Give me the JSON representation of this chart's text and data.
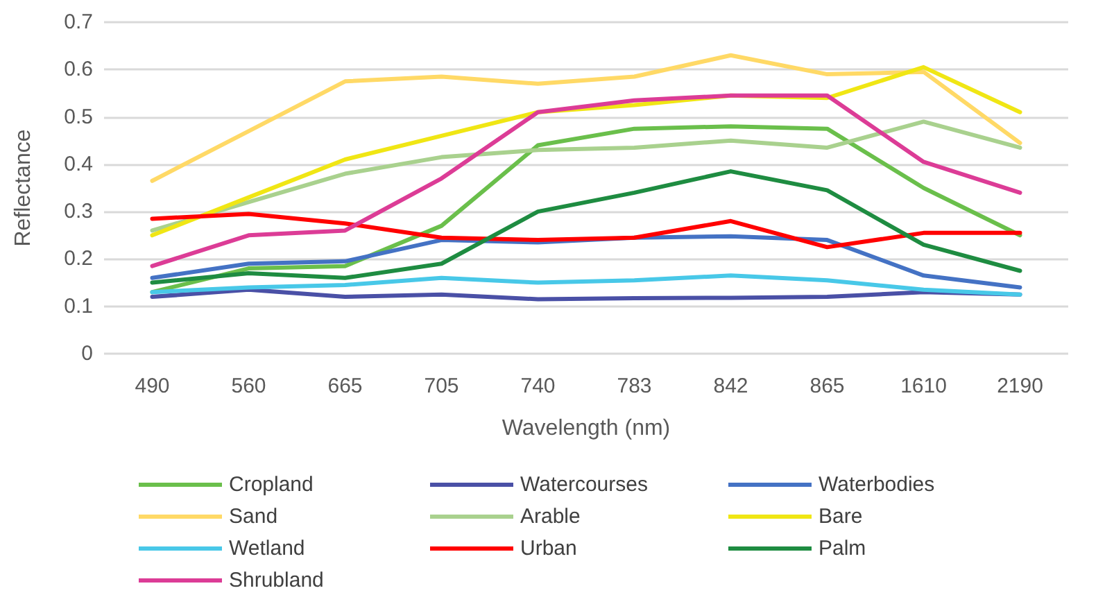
{
  "chart_data": {
    "type": "line",
    "xlabel": "Wavelength (nm)",
    "ylabel": "Reflectance",
    "categories": [
      "490",
      "560",
      "665",
      "705",
      "740",
      "783",
      "842",
      "865",
      "1610",
      "2190"
    ],
    "ylim": [
      0,
      0.7
    ],
    "yticks": [
      0,
      0.1,
      0.2,
      0.3,
      0.4,
      0.5,
      0.6,
      0.7
    ],
    "grid": "y",
    "legend": "bottom",
    "marker": "none",
    "line_style": "solid",
    "series": [
      {
        "name": "Cropland",
        "color": "#6abf4b",
        "values": [
          0.13,
          0.18,
          0.185,
          0.27,
          0.44,
          0.475,
          0.48,
          0.475,
          0.35,
          0.25
        ]
      },
      {
        "name": "Watercourses",
        "color": "#4a50a6",
        "values": [
          0.12,
          0.135,
          0.12,
          0.125,
          0.115,
          0.117,
          0.118,
          0.12,
          0.13,
          0.125
        ]
      },
      {
        "name": "Waterbodies",
        "color": "#4472c4",
        "values": [
          0.16,
          0.19,
          0.195,
          0.24,
          0.235,
          0.245,
          0.248,
          0.24,
          0.165,
          0.14
        ]
      },
      {
        "name": "Sand",
        "color": "#ffd966",
        "values": [
          0.365,
          0.47,
          0.575,
          0.585,
          0.57,
          0.585,
          0.63,
          0.59,
          0.595,
          0.445
        ]
      },
      {
        "name": "Arable",
        "color": "#a9d18e",
        "values": [
          0.26,
          0.32,
          0.38,
          0.415,
          0.43,
          0.435,
          0.45,
          0.435,
          0.49,
          0.435
        ]
      },
      {
        "name": "Bare",
        "color": "#f0e614",
        "values": [
          0.25,
          0.33,
          0.41,
          0.46,
          0.51,
          0.525,
          0.545,
          0.54,
          0.605,
          0.51
        ]
      },
      {
        "name": "Wetland",
        "color": "#48c8e8",
        "values": [
          0.13,
          0.14,
          0.145,
          0.16,
          0.15,
          0.155,
          0.165,
          0.155,
          0.135,
          0.125
        ]
      },
      {
        "name": "Urban",
        "color": "#ff0000",
        "values": [
          0.285,
          0.295,
          0.275,
          0.245,
          0.24,
          0.245,
          0.28,
          0.225,
          0.255,
          0.255
        ]
      },
      {
        "name": "Palm",
        "color": "#1e8c41",
        "values": [
          0.15,
          0.17,
          0.16,
          0.19,
          0.3,
          0.34,
          0.385,
          0.345,
          0.23,
          0.175
        ]
      },
      {
        "name": "Shrubland",
        "color": "#dc3c96",
        "values": [
          0.185,
          0.25,
          0.26,
          0.37,
          0.51,
          0.535,
          0.545,
          0.545,
          0.405,
          0.34
        ]
      }
    ]
  }
}
